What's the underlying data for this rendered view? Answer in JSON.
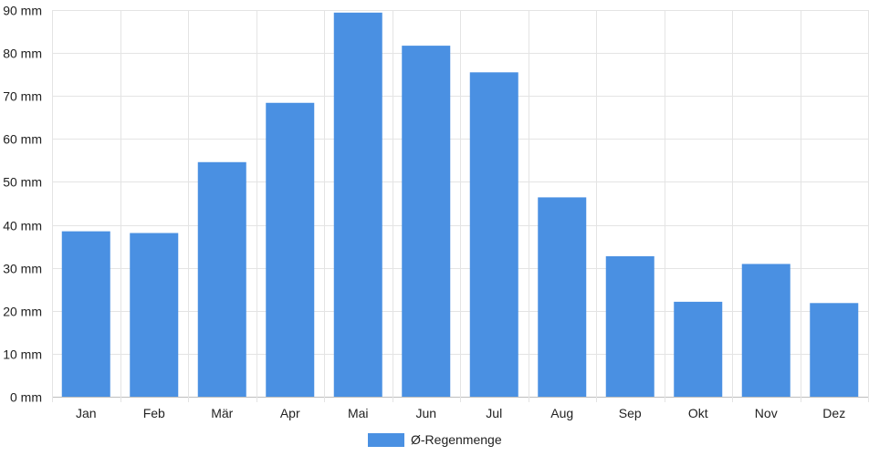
{
  "chart_data": {
    "type": "bar",
    "categories": [
      "Jan",
      "Feb",
      "Mär",
      "Apr",
      "Mai",
      "Jun",
      "Jul",
      "Aug",
      "Sep",
      "Okt",
      "Nov",
      "Dez"
    ],
    "series": [
      {
        "name": "Ø-Regenmenge",
        "values": [
          38.5,
          38.1,
          54.6,
          68.4,
          89.4,
          81.7,
          75.5,
          46.4,
          32.7,
          22.1,
          30.9,
          21.8
        ],
        "color": "#4a90e2"
      }
    ],
    "y_tick_labels": [
      "0 mm",
      "10 mm",
      "20 mm",
      "30 mm",
      "40 mm",
      "50 mm",
      "60 mm",
      "70 mm",
      "80 mm",
      "90 mm"
    ],
    "ylim": [
      0,
      90
    ],
    "grid": true,
    "legend_position": "bottom"
  }
}
